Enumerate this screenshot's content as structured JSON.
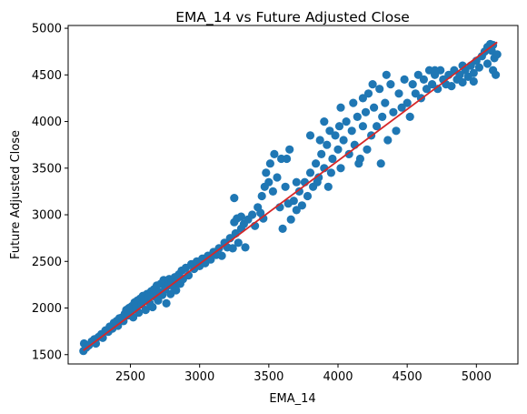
{
  "chart_data": {
    "type": "scatter",
    "title": "EMA_14 vs Future Adjusted Close",
    "xlabel": "EMA_14",
    "ylabel": "Future Adjusted Close",
    "xlim": [
      2050,
      5300
    ],
    "ylim": [
      1400,
      5030
    ],
    "xticks": [
      2500,
      3000,
      3500,
      4000,
      4500,
      5000
    ],
    "yticks": [
      1500,
      2000,
      2500,
      3000,
      3500,
      4000,
      4500,
      5000
    ],
    "grid": false,
    "legend": "none",
    "colors": {
      "points": "#1f77b4",
      "fit_line": "#d62728"
    },
    "series": [
      {
        "kind": "scatter",
        "points": [
          [
            2160,
            1540
          ],
          [
            2165,
            1620
          ],
          [
            2180,
            1575
          ],
          [
            2200,
            1600
          ],
          [
            2220,
            1640
          ],
          [
            2240,
            1665
          ],
          [
            2250,
            1620
          ],
          [
            2270,
            1690
          ],
          [
            2290,
            1720
          ],
          [
            2300,
            1680
          ],
          [
            2320,
            1760
          ],
          [
            2340,
            1745
          ],
          [
            2350,
            1800
          ],
          [
            2370,
            1780
          ],
          [
            2380,
            1840
          ],
          [
            2400,
            1860
          ],
          [
            2410,
            1810
          ],
          [
            2420,
            1890
          ],
          [
            2440,
            1900
          ],
          [
            2450,
            1860
          ],
          [
            2460,
            1940
          ],
          [
            2470,
            1980
          ],
          [
            2480,
            1920
          ],
          [
            2490,
            2000
          ],
          [
            2500,
            1960
          ],
          [
            2510,
            2020
          ],
          [
            2520,
            1900
          ],
          [
            2530,
            2060
          ],
          [
            2540,
            2010
          ],
          [
            2550,
            2080
          ],
          [
            2560,
            1950
          ],
          [
            2570,
            2100
          ],
          [
            2580,
            2040
          ],
          [
            2590,
            2130
          ],
          [
            2600,
            2070
          ],
          [
            2610,
            1980
          ],
          [
            2620,
            2150
          ],
          [
            2630,
            2110
          ],
          [
            2640,
            2050
          ],
          [
            2650,
            2180
          ],
          [
            2660,
            2010
          ],
          [
            2670,
            2200
          ],
          [
            2680,
            2120
          ],
          [
            2690,
            2240
          ],
          [
            2700,
            2080
          ],
          [
            2710,
            2170
          ],
          [
            2720,
            2260
          ],
          [
            2730,
            2140
          ],
          [
            2740,
            2300
          ],
          [
            2750,
            2200
          ],
          [
            2760,
            2050
          ],
          [
            2770,
            2240
          ],
          [
            2780,
            2310
          ],
          [
            2790,
            2150
          ],
          [
            2800,
            2280
          ],
          [
            2810,
            2230
          ],
          [
            2820,
            2330
          ],
          [
            2830,
            2190
          ],
          [
            2840,
            2290
          ],
          [
            2850,
            2360
          ],
          [
            2860,
            2260
          ],
          [
            2870,
            2400
          ],
          [
            2880,
            2310
          ],
          [
            2900,
            2430
          ],
          [
            2920,
            2350
          ],
          [
            2940,
            2470
          ],
          [
            2960,
            2420
          ],
          [
            2980,
            2500
          ],
          [
            3000,
            2450
          ],
          [
            3020,
            2530
          ],
          [
            3040,
            2480
          ],
          [
            3060,
            2560
          ],
          [
            3080,
            2520
          ],
          [
            3100,
            2600
          ],
          [
            3120,
            2570
          ],
          [
            3140,
            2640
          ],
          [
            3160,
            2560
          ],
          [
            3180,
            2700
          ],
          [
            3200,
            2650
          ],
          [
            3220,
            2750
          ],
          [
            3240,
            2640
          ],
          [
            3260,
            2800
          ],
          [
            3280,
            2700
          ],
          [
            3300,
            2850
          ],
          [
            3250,
            2920
          ],
          [
            3270,
            2960
          ],
          [
            3300,
            2980
          ],
          [
            3320,
            2900
          ],
          [
            3330,
            2650
          ],
          [
            3350,
            2950
          ],
          [
            3380,
            3000
          ],
          [
            3400,
            2880
          ],
          [
            3420,
            3080
          ],
          [
            3440,
            3020
          ],
          [
            3460,
            2960
          ],
          [
            3450,
            3200
          ],
          [
            3470,
            3300
          ],
          [
            3480,
            3450
          ],
          [
            3500,
            3350
          ],
          [
            3510,
            3550
          ],
          [
            3530,
            3250
          ],
          [
            3540,
            3650
          ],
          [
            3560,
            3400
          ],
          [
            3580,
            3080
          ],
          [
            3590,
            3600
          ],
          [
            3600,
            2850
          ],
          [
            3620,
            3300
          ],
          [
            3640,
            3120
          ],
          [
            3650,
            3700
          ],
          [
            3660,
            2950
          ],
          [
            3680,
            3150
          ],
          [
            3700,
            3050
          ],
          [
            3720,
            3250
          ],
          [
            3740,
            3100
          ],
          [
            3760,
            3350
          ],
          [
            3780,
            3200
          ],
          [
            3800,
            3450
          ],
          [
            3800,
            3850
          ],
          [
            3820,
            3300
          ],
          [
            3840,
            3550
          ],
          [
            3860,
            3400
          ],
          [
            3870,
            3800
          ],
          [
            3880,
            3650
          ],
          [
            3900,
            3500
          ],
          [
            3920,
            3750
          ],
          [
            3930,
            3300
          ],
          [
            3940,
            3900
          ],
          [
            3960,
            3600
          ],
          [
            3980,
            3850
          ],
          [
            4000,
            3700
          ],
          [
            4010,
            3950
          ],
          [
            4020,
            3500
          ],
          [
            4040,
            3800
          ],
          [
            4060,
            4000
          ],
          [
            4080,
            3650
          ],
          [
            4100,
            3900
          ],
          [
            4110,
            4200
          ],
          [
            4120,
            3750
          ],
          [
            4140,
            4050
          ],
          [
            4160,
            3600
          ],
          [
            4180,
            3950
          ],
          [
            4200,
            4100
          ],
          [
            4210,
            3700
          ],
          [
            4220,
            4300
          ],
          [
            4240,
            3850
          ],
          [
            4260,
            4150
          ],
          [
            4280,
            3950
          ],
          [
            4300,
            4350
          ],
          [
            4310,
            3550
          ],
          [
            4320,
            4050
          ],
          [
            4340,
            4200
          ],
          [
            4360,
            3800
          ],
          [
            4380,
            4400
          ],
          [
            4400,
            4100
          ],
          [
            4420,
            3900
          ],
          [
            4440,
            4300
          ],
          [
            4460,
            4150
          ],
          [
            4480,
            4450
          ],
          [
            4500,
            4200
          ],
          [
            4520,
            4050
          ],
          [
            4540,
            4400
          ],
          [
            4560,
            4300
          ],
          [
            4580,
            4500
          ],
          [
            4600,
            4250
          ],
          [
            4620,
            4450
          ],
          [
            4640,
            4350
          ],
          [
            4660,
            4550
          ],
          [
            4680,
            4400
          ],
          [
            4700,
            4500
          ],
          [
            4720,
            4350
          ],
          [
            4740,
            4550
          ],
          [
            4760,
            4450
          ],
          [
            4780,
            4400
          ],
          [
            4800,
            4500
          ],
          [
            4820,
            4380
          ],
          [
            4840,
            4550
          ],
          [
            4860,
            4450
          ],
          [
            4880,
            4500
          ],
          [
            4900,
            4420
          ],
          [
            4920,
            4550
          ],
          [
            4940,
            4480
          ],
          [
            4960,
            4600
          ],
          [
            4980,
            4520
          ],
          [
            5000,
            4650
          ],
          [
            5020,
            4580
          ],
          [
            5040,
            4700
          ],
          [
            5060,
            4750
          ],
          [
            5080,
            4800
          ],
          [
            5100,
            4830
          ],
          [
            5110,
            4760
          ],
          [
            5120,
            4550
          ],
          [
            5130,
            4680
          ],
          [
            5140,
            4500
          ],
          [
            5150,
            4720
          ],
          [
            5120,
            4820
          ],
          [
            5080,
            4620
          ],
          [
            4980,
            4430
          ],
          [
            4900,
            4600
          ],
          [
            4700,
            4550
          ],
          [
            4250,
            4400
          ],
          [
            3900,
            4000
          ],
          [
            3250,
            3180
          ],
          [
            4020,
            4150
          ],
          [
            4180,
            4250
          ],
          [
            4350,
            4500
          ],
          [
            4150,
            3550
          ],
          [
            3950,
            3450
          ],
          [
            3850,
            3350
          ],
          [
            3700,
            3350
          ],
          [
            3630,
            3600
          ]
        ]
      },
      {
        "kind": "line",
        "points": [
          [
            2160,
            1545
          ],
          [
            5150,
            4850
          ]
        ]
      }
    ]
  }
}
